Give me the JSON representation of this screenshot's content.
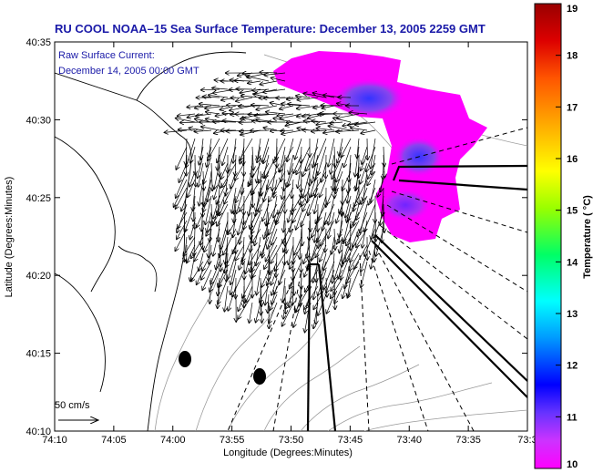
{
  "chart_data": {
    "type": "heatmap",
    "title": "RU COOL   NOAA–15  Sea Surface Temperature:  December 13, 2005 2259 GMT",
    "xlabel": "Longitude (Degrees:Minutes)",
    "ylabel": "Latitude (Degrees:Minutes)",
    "x_ticks": [
      "74:10",
      "74:05",
      "74:00",
      "73:55",
      "73:50",
      "73:45",
      "73:40",
      "73:35",
      "73:3"
    ],
    "y_ticks": [
      "40:10",
      "40:15",
      "40:20",
      "40:25",
      "40:30",
      "40:35"
    ],
    "xlim": [
      -74.1667,
      -73.5
    ],
    "ylim": [
      40.1667,
      40.5833
    ],
    "colorbar": {
      "label": "Temperature ( °C)",
      "min": 10,
      "max": 19,
      "ticks": [
        "19",
        "18",
        "17",
        "16",
        "15",
        "14",
        "13",
        "12",
        "11",
        "10"
      ],
      "colors": [
        "#ff00ff",
        "#9932cc",
        "#0000ff",
        "#00bfff",
        "#00ffff",
        "#00ff00",
        "#adff2f",
        "#ffff00",
        "#ffa500",
        "#ff4500",
        "#cc0000",
        "#8b0000"
      ]
    },
    "annotations": {
      "current_label": "Raw Surface Current:",
      "current_date": "December 14, 2005 00:00 GMT",
      "scale_label": "50 cm/s"
    },
    "sst_patch": {
      "approx_temperature_range": [
        10,
        11
      ],
      "coldest_core_temperature": 11
    },
    "vector_field": {
      "description_units": "cm/s",
      "dominant_direction": "south-southwest"
    }
  }
}
